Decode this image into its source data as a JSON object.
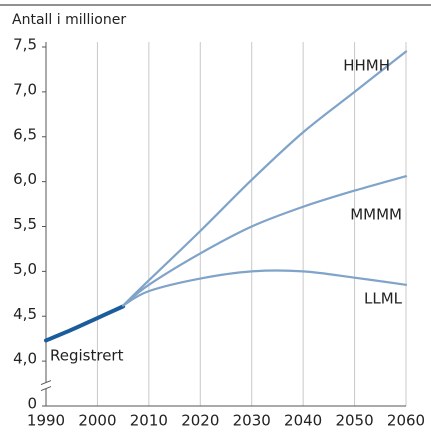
{
  "chart_data": {
    "type": "line",
    "title": "Antall i millioner",
    "xlim": [
      1990,
      2060
    ],
    "xticks": [
      1990,
      2000,
      2010,
      2020,
      2030,
      2040,
      2050,
      2060
    ],
    "ylim": [
      0,
      7.5
    ],
    "y_break": [
      0,
      3.5
    ],
    "yticks": [
      0,
      {
        "value": 4.0,
        "label": "4,0"
      },
      {
        "value": 4.5,
        "label": "4,5"
      },
      {
        "value": 5.0,
        "label": "5,0"
      },
      {
        "value": 5.5,
        "label": "5,5"
      },
      {
        "value": 6.0,
        "label": "6,0"
      },
      {
        "value": 6.5,
        "label": "6,5"
      },
      {
        "value": 7.0,
        "label": "7,0"
      },
      {
        "value": 7.5,
        "label": "7,5"
      }
    ],
    "grid": "x",
    "series": [
      {
        "name": "Registrert",
        "color": "#1b5d9c",
        "x": [
          1990,
          1995,
          2000,
          2005
        ],
        "values": [
          4.23,
          4.35,
          4.48,
          4.61
        ]
      },
      {
        "name": "HHMH",
        "color": "#7fa3c9",
        "x": [
          2005,
          2010,
          2020,
          2030,
          2040,
          2050,
          2060
        ],
        "values": [
          4.62,
          4.9,
          5.45,
          6.02,
          6.55,
          7.0,
          7.45
        ]
      },
      {
        "name": "MMMM",
        "color": "#7fa3c9",
        "x": [
          2005,
          2010,
          2020,
          2030,
          2040,
          2050,
          2060
        ],
        "values": [
          4.62,
          4.85,
          5.2,
          5.5,
          5.72,
          5.9,
          6.06
        ]
      },
      {
        "name": "LLML",
        "color": "#7fa3c9",
        "x": [
          2005,
          2010,
          2020,
          2030,
          2040,
          2050,
          2060
        ],
        "values": [
          4.62,
          4.78,
          4.92,
          5.0,
          5.0,
          4.93,
          4.85
        ]
      }
    ]
  }
}
